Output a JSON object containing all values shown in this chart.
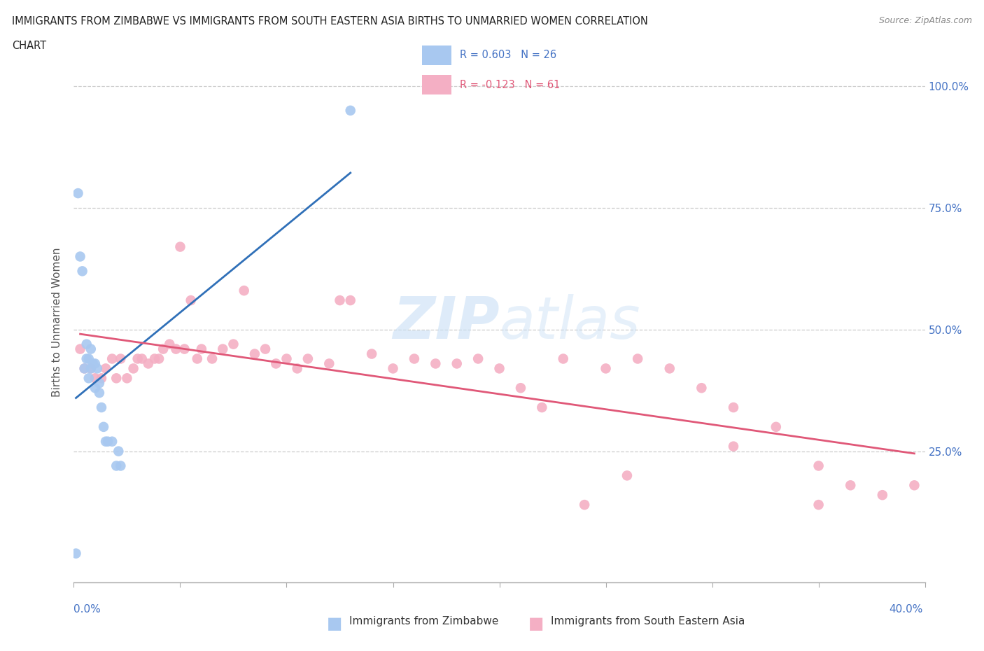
{
  "title_line1": "IMMIGRANTS FROM ZIMBABWE VS IMMIGRANTS FROM SOUTH EASTERN ASIA BIRTHS TO UNMARRIED WOMEN CORRELATION",
  "title_line2": "CHART",
  "source": "Source: ZipAtlas.com",
  "ylabel": "Births to Unmarried Women",
  "xlim": [
    0.0,
    0.4
  ],
  "ylim": [
    -0.02,
    1.05
  ],
  "color_zimbabwe": "#a8c8f0",
  "color_sea": "#f4afc4",
  "color_zimbabwe_line": "#3070b8",
  "color_sea_line": "#e05878",
  "zimbabwe_x": [
    0.001,
    0.002,
    0.003,
    0.004,
    0.005,
    0.006,
    0.006,
    0.007,
    0.007,
    0.008,
    0.008,
    0.009,
    0.01,
    0.01,
    0.011,
    0.012,
    0.012,
    0.013,
    0.014,
    0.015,
    0.016,
    0.018,
    0.02,
    0.021,
    0.022,
    0.13
  ],
  "zimbabwe_y": [
    0.04,
    0.78,
    0.65,
    0.62,
    0.42,
    0.44,
    0.47,
    0.4,
    0.44,
    0.42,
    0.46,
    0.43,
    0.38,
    0.43,
    0.42,
    0.39,
    0.37,
    0.34,
    0.3,
    0.27,
    0.27,
    0.27,
    0.22,
    0.25,
    0.22,
    0.95
  ],
  "sea_x": [
    0.003,
    0.005,
    0.008,
    0.01,
    0.013,
    0.015,
    0.018,
    0.02,
    0.022,
    0.025,
    0.028,
    0.03,
    0.032,
    0.035,
    0.038,
    0.04,
    0.042,
    0.045,
    0.048,
    0.05,
    0.052,
    0.055,
    0.058,
    0.06,
    0.065,
    0.07,
    0.075,
    0.08,
    0.085,
    0.09,
    0.095,
    0.1,
    0.105,
    0.11,
    0.12,
    0.125,
    0.13,
    0.14,
    0.15,
    0.16,
    0.17,
    0.18,
    0.19,
    0.2,
    0.21,
    0.22,
    0.23,
    0.25,
    0.265,
    0.28,
    0.295,
    0.31,
    0.33,
    0.35,
    0.365,
    0.38,
    0.395,
    0.35,
    0.31,
    0.26,
    0.24
  ],
  "sea_y": [
    0.46,
    0.42,
    0.42,
    0.4,
    0.4,
    0.42,
    0.44,
    0.4,
    0.44,
    0.4,
    0.42,
    0.44,
    0.44,
    0.43,
    0.44,
    0.44,
    0.46,
    0.47,
    0.46,
    0.67,
    0.46,
    0.56,
    0.44,
    0.46,
    0.44,
    0.46,
    0.47,
    0.58,
    0.45,
    0.46,
    0.43,
    0.44,
    0.42,
    0.44,
    0.43,
    0.56,
    0.56,
    0.45,
    0.42,
    0.44,
    0.43,
    0.43,
    0.44,
    0.42,
    0.38,
    0.34,
    0.44,
    0.42,
    0.44,
    0.42,
    0.38,
    0.34,
    0.3,
    0.14,
    0.18,
    0.16,
    0.18,
    0.22,
    0.26,
    0.2,
    0.14
  ]
}
